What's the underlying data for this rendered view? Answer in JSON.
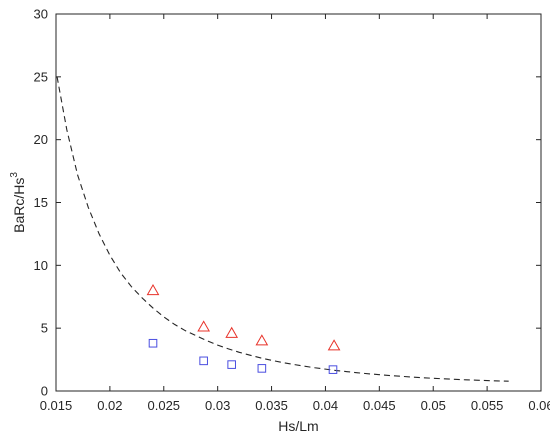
{
  "chart_data": {
    "type": "scatter",
    "title": "",
    "xlabel": "Hs/Lm",
    "ylabel": {
      "base": "BaRc/Hs",
      "superscript": "3"
    },
    "xlim": [
      0.015,
      0.06
    ],
    "ylim": [
      0,
      30
    ],
    "xticks": [
      0.015,
      0.02,
      0.025,
      0.03,
      0.035,
      0.04,
      0.045,
      0.05,
      0.055,
      0.06
    ],
    "xtick_labels": [
      "0.015",
      "0.02",
      "0.025",
      "0.03",
      "0.035",
      "0.04",
      "0.045",
      "0.05",
      "0.055",
      "0.06"
    ],
    "yticks": [
      0,
      5,
      10,
      15,
      20,
      25,
      30
    ],
    "ytick_labels": [
      "0",
      "5",
      "10",
      "15",
      "20",
      "25",
      "30"
    ],
    "grid": false,
    "legend": null,
    "series": [
      {
        "marker": "triangle",
        "color": "#e8332a",
        "x": [
          0.024,
          0.0287,
          0.0313,
          0.0341,
          0.0408
        ],
        "y": [
          8.0,
          5.1,
          4.6,
          4.0,
          3.6
        ]
      },
      {
        "marker": "square",
        "color": "#4a4ee0",
        "x": [
          0.024,
          0.0287,
          0.0313,
          0.0341,
          0.0407
        ],
        "y": [
          3.8,
          2.4,
          2.1,
          1.8,
          1.7
        ]
      }
    ],
    "fit_curve": {
      "style": "dashed",
      "color": "#262626",
      "x": [
        0.0151,
        0.016,
        0.017,
        0.018,
        0.019,
        0.02,
        0.021,
        0.022,
        0.023,
        0.024,
        0.025,
        0.026,
        0.027,
        0.028,
        0.029,
        0.03,
        0.031,
        0.032,
        0.033,
        0.034,
        0.035,
        0.036,
        0.037,
        0.038,
        0.039,
        0.04,
        0.041,
        0.042,
        0.043,
        0.044,
        0.045,
        0.046,
        0.047,
        0.048,
        0.049,
        0.05,
        0.051,
        0.052,
        0.053,
        0.054,
        0.055,
        0.056,
        0.057
      ],
      "y": [
        25.0,
        20.8,
        17.2,
        14.6,
        12.5,
        10.8,
        9.4,
        8.3,
        7.4,
        6.6,
        5.9,
        5.3,
        4.8,
        4.4,
        4.0,
        3.65,
        3.35,
        3.08,
        2.85,
        2.63,
        2.44,
        2.27,
        2.12,
        1.98,
        1.85,
        1.74,
        1.63,
        1.54,
        1.45,
        1.37,
        1.3,
        1.23,
        1.17,
        1.11,
        1.06,
        1.01,
        0.97,
        0.93,
        0.89,
        0.86,
        0.83,
        0.8,
        0.78
      ]
    }
  }
}
